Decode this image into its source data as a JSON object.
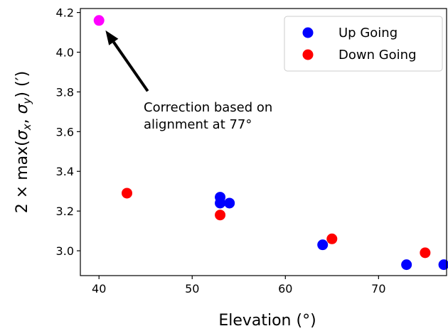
{
  "chart_data": {
    "type": "scatter",
    "title": "",
    "xlabel": "Elevation (°)",
    "ylabel": "2 × max(σx, σy) (′)",
    "xlim": [
      38,
      77.3
    ],
    "ylim": [
      2.875,
      4.22
    ],
    "xticks": [
      40,
      50,
      60,
      70
    ],
    "yticks": [
      3.0,
      3.2,
      3.4,
      3.6,
      3.8,
      4.0,
      4.2
    ],
    "xtick_labels": [
      "40",
      "50",
      "60",
      "70"
    ],
    "ytick_labels": [
      "3.0",
      "3.2",
      "3.4",
      "3.6",
      "3.8",
      "4.0",
      "4.2"
    ],
    "grid": false,
    "legend_position": "top-right",
    "series": [
      {
        "name": "Up Going",
        "color": "#0000ff",
        "x": [
          53,
          53,
          54,
          64,
          73,
          77
        ],
        "y": [
          3.27,
          3.24,
          3.24,
          3.03,
          2.93,
          2.93
        ]
      },
      {
        "name": "Down Going",
        "color": "#ff0000",
        "x": [
          43,
          53,
          65,
          75
        ],
        "y": [
          3.29,
          3.18,
          3.06,
          2.99
        ]
      }
    ],
    "highlight_point": {
      "x": 40,
      "y": 4.16,
      "color": "#ff00ff"
    },
    "annotation": {
      "lines": [
        "Correction based on",
        "alignment at 77°"
      ],
      "arrow_to": {
        "x": 40.7,
        "y": 4.11
      },
      "arrow_from": {
        "x": 45,
        "y": 3.79
      }
    }
  }
}
